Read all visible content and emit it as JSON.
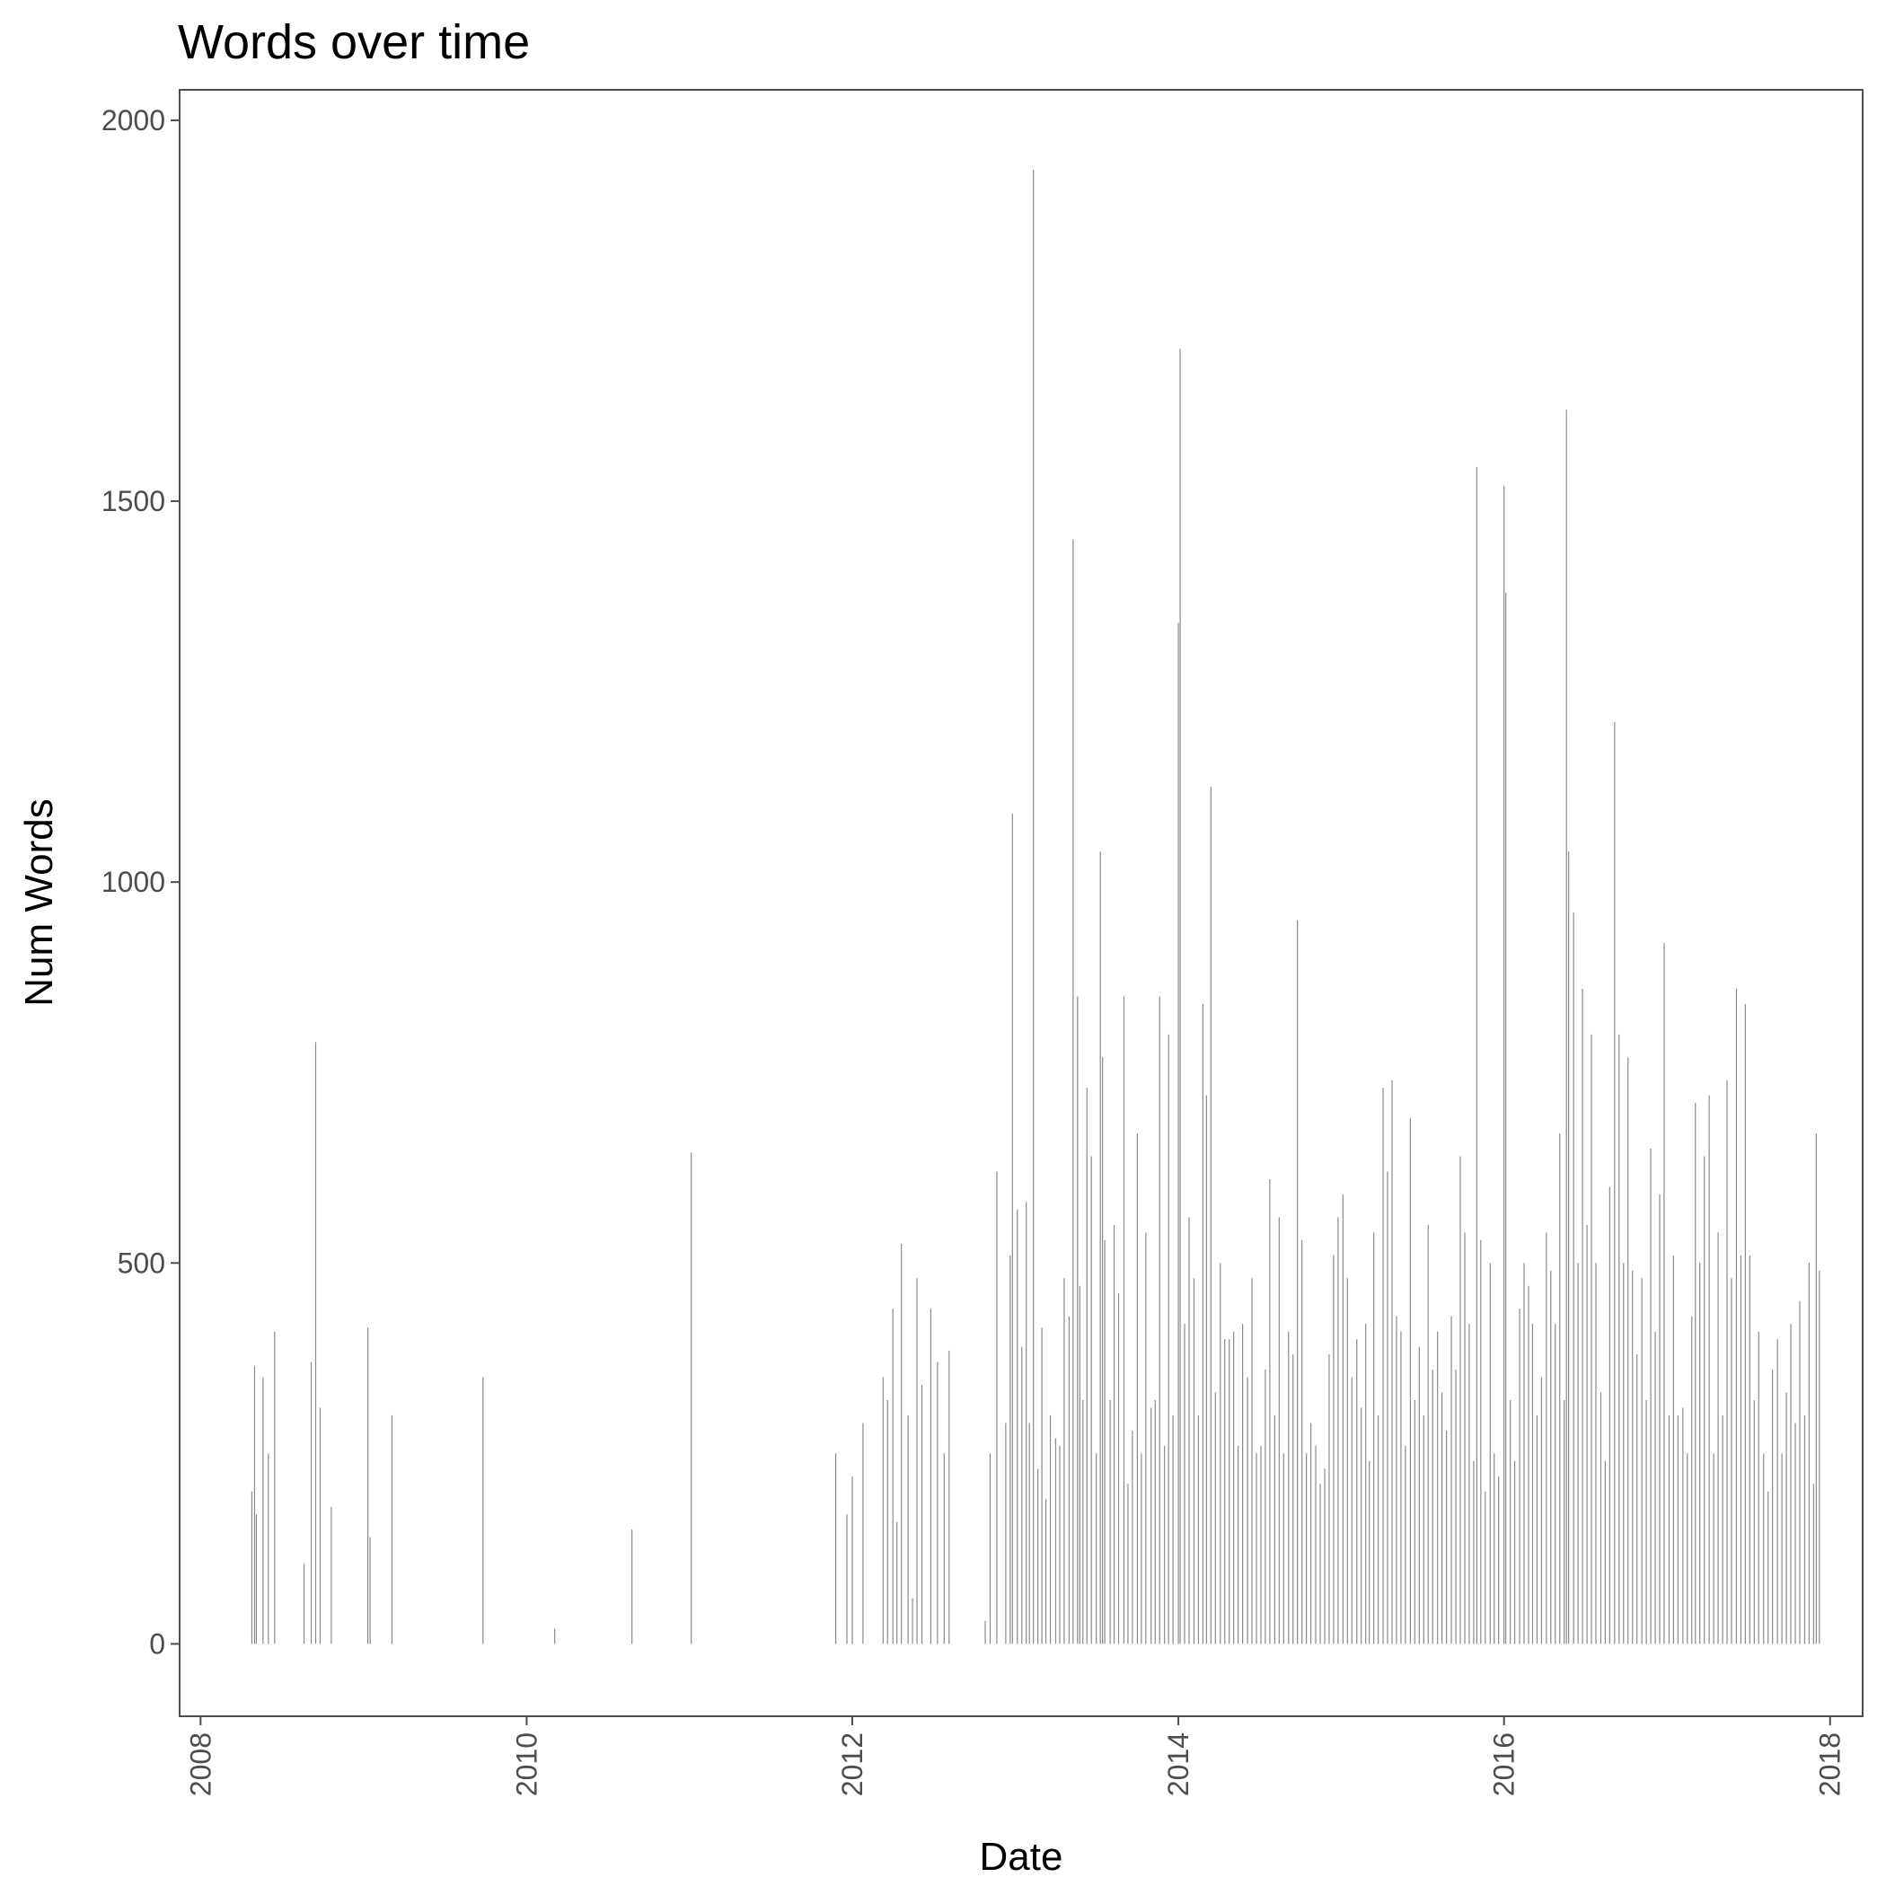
{
  "chart_data": {
    "type": "bar",
    "title": "Words over time",
    "xlabel": "Date",
    "ylabel": "Num Words",
    "xlim": [
      "2007-11-15",
      "2018-03-15"
    ],
    "ylim": [
      -95,
      2040
    ],
    "x_ticks": [
      "2008",
      "2010",
      "2012",
      "2014",
      "2016",
      "2018"
    ],
    "y_ticks": [
      0,
      500,
      1000,
      1500,
      2000
    ],
    "grid": false,
    "bar_color": "#595959",
    "x": [
      "2008-04-25",
      "2008-05-01",
      "2008-05-05",
      "2008-05-20",
      "2008-06-01",
      "2008-06-15",
      "2008-08-20",
      "2008-09-05",
      "2008-09-15",
      "2008-09-25",
      "2008-10-20",
      "2009-01-10",
      "2009-01-15",
      "2009-03-05",
      "2009-09-25",
      "2010-03-05",
      "2010-08-25",
      "2011-01-05",
      "2011-11-25",
      "2011-12-20",
      "2012-01-01",
      "2012-01-25",
      "2012-03-10",
      "2012-03-20",
      "2012-04-01",
      "2012-04-10",
      "2012-04-20",
      "2012-05-05",
      "2012-05-15",
      "2012-05-25",
      "2012-06-05",
      "2012-06-25",
      "2012-07-10",
      "2012-07-25",
      "2012-08-05",
      "2012-10-25",
      "2012-11-05",
      "2012-11-20",
      "2012-12-10",
      "2012-12-20",
      "2012-12-25",
      "2013-01-05",
      "2013-01-15",
      "2013-01-25",
      "2013-02-01",
      "2013-02-10",
      "2013-02-20",
      "2013-03-01",
      "2013-03-10",
      "2013-03-20",
      "2013-04-01",
      "2013-04-10",
      "2013-04-20",
      "2013-05-01",
      "2013-05-10",
      "2013-05-20",
      "2013-05-25",
      "2013-06-01",
      "2013-06-10",
      "2013-06-20",
      "2013-07-01",
      "2013-07-10",
      "2013-07-15",
      "2013-07-20",
      "2013-08-01",
      "2013-08-10",
      "2013-08-20",
      "2013-09-01",
      "2013-09-10",
      "2013-09-20",
      "2013-10-01",
      "2013-10-10",
      "2013-10-20",
      "2013-11-01",
      "2013-11-10",
      "2013-11-20",
      "2013-12-01",
      "2013-12-10",
      "2013-12-20",
      "2014-01-01",
      "2014-01-05",
      "2014-01-15",
      "2014-01-25",
      "2014-02-05",
      "2014-02-15",
      "2014-02-25",
      "2014-03-05",
      "2014-03-15",
      "2014-03-25",
      "2014-04-05",
      "2014-04-15",
      "2014-04-25",
      "2014-05-05",
      "2014-05-15",
      "2014-05-25",
      "2014-06-05",
      "2014-06-15",
      "2014-06-25",
      "2014-07-05",
      "2014-07-15",
      "2014-07-25",
      "2014-08-05",
      "2014-08-15",
      "2014-08-25",
      "2014-09-05",
      "2014-09-15",
      "2014-09-25",
      "2014-10-05",
      "2014-10-15",
      "2014-10-25",
      "2014-11-05",
      "2014-11-15",
      "2014-11-25",
      "2014-12-05",
      "2014-12-15",
      "2014-12-25",
      "2015-01-05",
      "2015-01-15",
      "2015-01-25",
      "2015-02-05",
      "2015-02-15",
      "2015-02-25",
      "2015-03-05",
      "2015-03-15",
      "2015-03-25",
      "2015-04-05",
      "2015-04-15",
      "2015-04-25",
      "2015-05-05",
      "2015-05-15",
      "2015-05-25",
      "2015-06-05",
      "2015-06-15",
      "2015-06-25",
      "2015-07-05",
      "2015-07-15",
      "2015-07-25",
      "2015-08-05",
      "2015-08-15",
      "2015-08-25",
      "2015-09-05",
      "2015-09-15",
      "2015-09-25",
      "2015-10-05",
      "2015-10-15",
      "2015-10-25",
      "2015-11-01",
      "2015-11-10",
      "2015-11-20",
      "2015-12-01",
      "2015-12-10",
      "2015-12-20",
      "2016-01-01",
      "2016-01-05",
      "2016-01-15",
      "2016-01-25",
      "2016-02-05",
      "2016-02-15",
      "2016-02-25",
      "2016-03-05",
      "2016-03-15",
      "2016-03-25",
      "2016-04-05",
      "2016-04-15",
      "2016-04-25",
      "2016-05-05",
      "2016-05-15",
      "2016-05-20",
      "2016-05-25",
      "2016-06-05",
      "2016-06-15",
      "2016-06-25",
      "2016-07-05",
      "2016-07-15",
      "2016-07-25",
      "2016-08-05",
      "2016-08-15",
      "2016-08-25",
      "2016-09-05",
      "2016-09-15",
      "2016-09-25",
      "2016-10-05",
      "2016-10-15",
      "2016-10-25",
      "2016-11-05",
      "2016-11-15",
      "2016-11-25",
      "2016-12-05",
      "2016-12-15",
      "2016-12-25",
      "2017-01-05",
      "2017-01-15",
      "2017-01-25",
      "2017-02-05",
      "2017-02-15",
      "2017-02-25",
      "2017-03-05",
      "2017-03-15",
      "2017-03-25",
      "2017-04-05",
      "2017-04-15",
      "2017-04-25",
      "2017-05-05",
      "2017-05-15",
      "2017-05-25",
      "2017-06-05",
      "2017-06-15",
      "2017-06-25",
      "2017-07-05",
      "2017-07-15",
      "2017-07-25",
      "2017-08-05",
      "2017-08-15",
      "2017-08-25",
      "2017-09-05",
      "2017-09-15",
      "2017-09-25",
      "2017-10-05",
      "2017-10-15",
      "2017-10-25",
      "2017-11-05",
      "2017-11-15",
      "2017-11-25",
      "2017-12-01",
      "2017-12-08"
    ],
    "values": [
      200,
      365,
      170,
      350,
      250,
      410,
      105,
      370,
      790,
      310,
      180,
      415,
      140,
      300,
      350,
      20,
      150,
      645,
      250,
      170,
      220,
      290,
      350,
      320,
      440,
      160,
      525,
      300,
      60,
      480,
      340,
      440,
      370,
      250,
      385,
      30,
      250,
      620,
      290,
      510,
      1090,
      570,
      390,
      580,
      290,
      1935,
      230,
      415,
      190,
      300,
      270,
      260,
      480,
      430,
      1450,
      850,
      470,
      320,
      730,
      640,
      250,
      1040,
      770,
      530,
      320,
      550,
      460,
      850,
      210,
      280,
      670,
      250,
      540,
      310,
      320,
      850,
      260,
      800,
      300,
      1340,
      1700,
      420,
      560,
      480,
      300,
      840,
      720,
      1125,
      330,
      500,
      400,
      400,
      410,
      260,
      420,
      350,
      480,
      250,
      260,
      360,
      610,
      300,
      560,
      250,
      410,
      380,
      950,
      530,
      250,
      290,
      260,
      210,
      230,
      380,
      510,
      560,
      590,
      480,
      350,
      400,
      310,
      420,
      240,
      540,
      300,
      730,
      620,
      740,
      430,
      410,
      260,
      690,
      320,
      390,
      300,
      550,
      360,
      410,
      330,
      280,
      430,
      360,
      640,
      540,
      420,
      240,
      1545,
      530,
      200,
      500,
      250,
      220,
      1520,
      1380,
      320,
      240,
      440,
      500,
      470,
      420,
      300,
      350,
      540,
      490,
      420,
      670,
      320,
      1620,
      1040,
      960,
      500,
      860,
      550,
      800,
      500,
      330,
      240,
      600,
      1210,
      800,
      500,
      770,
      490,
      380,
      480,
      320,
      650,
      410,
      590,
      920,
      300,
      510,
      300,
      310,
      250,
      430,
      710,
      500,
      640,
      720,
      250,
      540,
      300,
      740,
      480,
      860,
      510,
      840,
      510,
      320,
      410,
      250,
      200,
      360,
      400,
      250,
      330,
      420,
      290,
      450,
      300,
      500,
      210,
      670,
      490
    ]
  }
}
